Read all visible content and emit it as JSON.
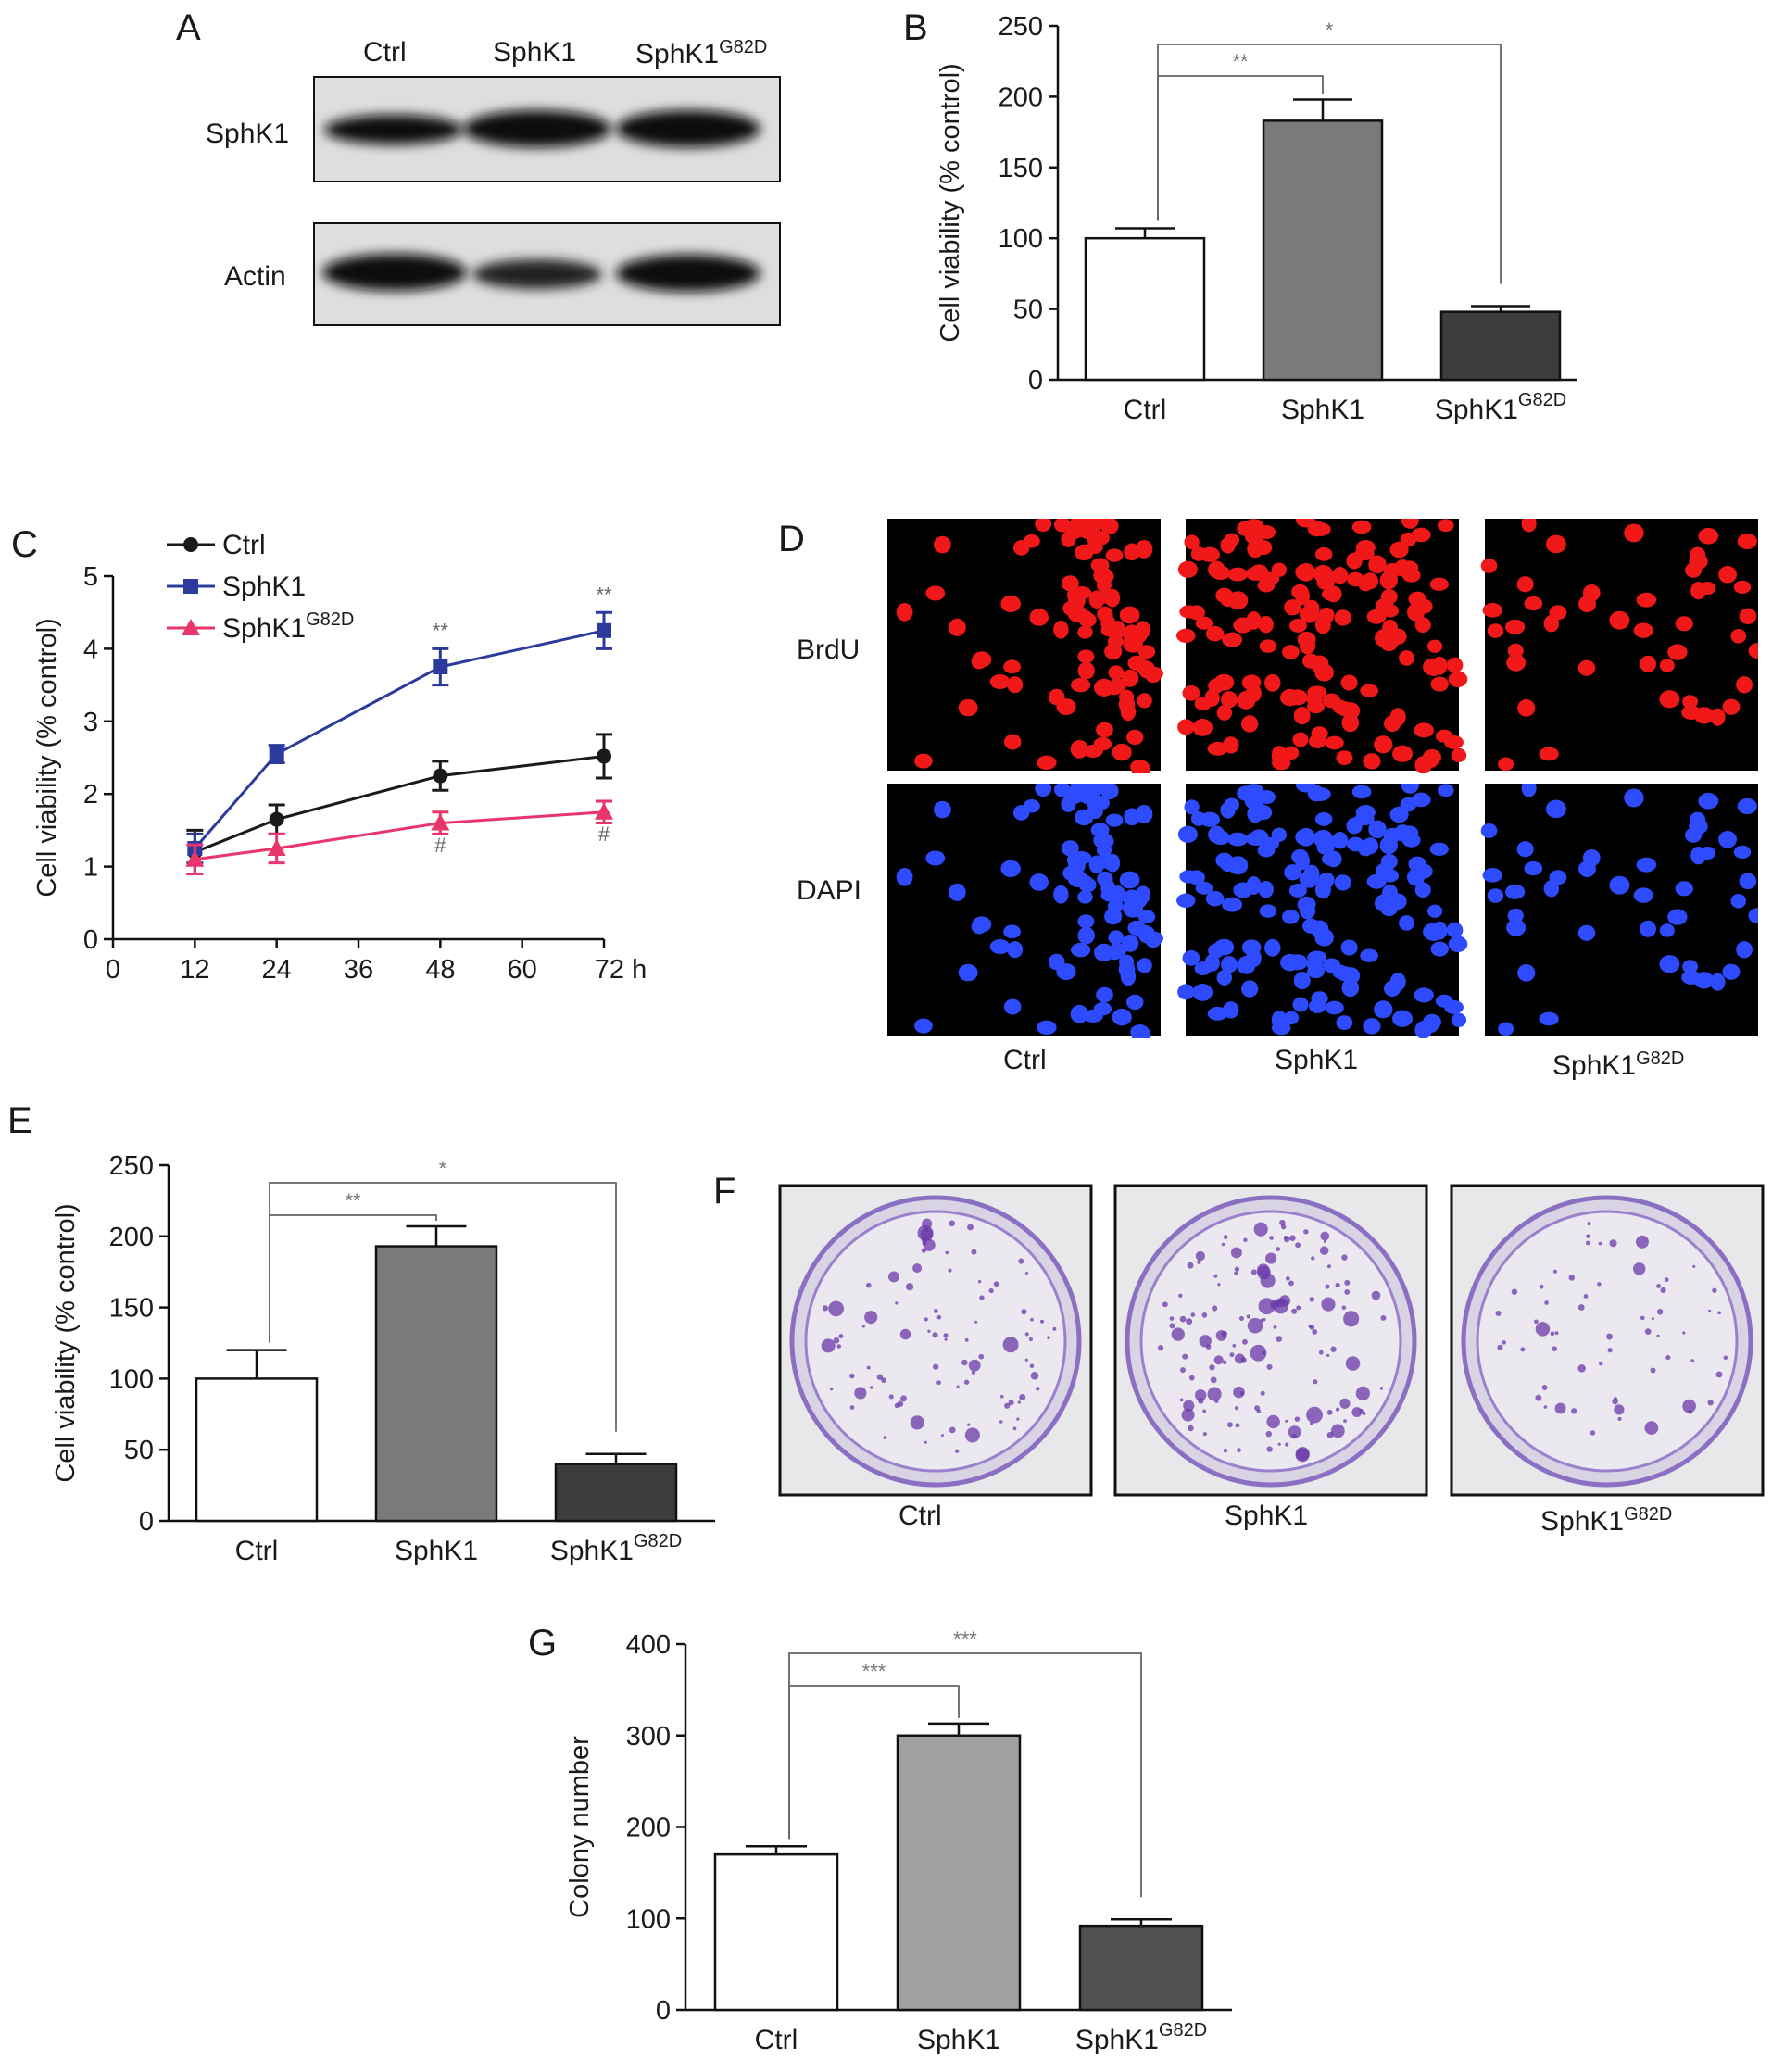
{
  "panels": {
    "a": {
      "letter": "A",
      "lanes": [
        "Ctrl",
        "SphK1",
        "SphK1"
      ],
      "lane3_superscript": "G82D",
      "rows": [
        "SphK1",
        "Actin"
      ]
    },
    "d": {
      "letter": "D",
      "rows": [
        "BrdU",
        "DAPI"
      ],
      "columns": [
        "Ctrl",
        "SphK1",
        "SphK1"
      ],
      "col3_superscript": "G82D"
    },
    "f": {
      "letter": "F",
      "columns": [
        "Ctrl",
        "SphK1",
        "SphK1"
      ],
      "col3_superscript": "G82D"
    }
  },
  "chart_data": [
    {
      "id": "B",
      "letter": "B",
      "type": "bar",
      "categories": [
        "Ctrl",
        "SphK1",
        "SphK1"
      ],
      "category_superscripts": [
        "",
        "",
        "G82D"
      ],
      "values": [
        100,
        183,
        48
      ],
      "errors": [
        7,
        15,
        4
      ],
      "ylabel": "Cell viability (% control)",
      "ylim": [
        0,
        250
      ],
      "yticks": [
        0,
        50,
        100,
        150,
        200,
        250
      ],
      "bar_colors": [
        "#ffffff",
        "#7a7a7a",
        "#3d3d3d"
      ],
      "brackets": [
        {
          "from": 0,
          "to": 1,
          "label": "**"
        },
        {
          "from": 0,
          "to": 2,
          "label": "*"
        }
      ]
    },
    {
      "id": "C",
      "letter": "C",
      "type": "line",
      "x": [
        12,
        24,
        48,
        72
      ],
      "xticks": [
        0,
        12,
        24,
        36,
        48,
        60,
        72
      ],
      "xtick_labels": [
        "0",
        "12",
        "24",
        "36",
        "48",
        "60",
        "72 h"
      ],
      "xlim": [
        0,
        72
      ],
      "ylim": [
        0,
        5
      ],
      "yticks": [
        0,
        1,
        2,
        3,
        4,
        5
      ],
      "ylabel": "Cell viability (% control)",
      "legend_position": "top-left",
      "series": [
        {
          "name": "Ctrl",
          "superscript": "",
          "values": [
            1.2,
            1.65,
            2.25,
            2.52
          ],
          "errors": [
            0.3,
            0.2,
            0.2,
            0.3
          ],
          "color": "#1a1a1a",
          "marker": "circle"
        },
        {
          "name": "SphK1",
          "superscript": "",
          "values": [
            1.25,
            2.55,
            3.75,
            4.25
          ],
          "errors": [
            0.2,
            0.12,
            0.25,
            0.25
          ],
          "color": "#2b3a9c",
          "marker": "square"
        },
        {
          "name": "SphK1",
          "superscript": "G82D",
          "values": [
            1.1,
            1.25,
            1.6,
            1.75
          ],
          "errors": [
            0.2,
            0.2,
            0.15,
            0.15
          ],
          "color": "#e8356b",
          "marker": "triangle"
        }
      ],
      "annotations": [
        {
          "x": 48,
          "y": 4.15,
          "text": "**"
        },
        {
          "x": 72,
          "y": 4.65,
          "text": "**"
        },
        {
          "x": 48,
          "y": 1.2,
          "text": "#"
        },
        {
          "x": 72,
          "y": 1.35,
          "text": "#"
        }
      ]
    },
    {
      "id": "E",
      "letter": "E",
      "type": "bar",
      "categories": [
        "Ctrl",
        "SphK1",
        "SphK1"
      ],
      "category_superscripts": [
        "",
        "",
        "G82D"
      ],
      "values": [
        100,
        193,
        40
      ],
      "errors": [
        20,
        14,
        7
      ],
      "ylabel": "Cell viability (% control)",
      "ylim": [
        0,
        250
      ],
      "yticks": [
        0,
        50,
        100,
        150,
        200,
        250
      ],
      "bar_colors": [
        "#ffffff",
        "#7a7a7a",
        "#3d3d3d"
      ],
      "brackets": [
        {
          "from": 0,
          "to": 1,
          "label": "**"
        },
        {
          "from": 0,
          "to": 2,
          "label": "*"
        }
      ]
    },
    {
      "id": "G",
      "letter": "G",
      "type": "bar",
      "categories": [
        "Ctrl",
        "SphK1",
        "SphK1"
      ],
      "category_superscripts": [
        "",
        "",
        "G82D"
      ],
      "values": [
        170,
        300,
        92
      ],
      "errors": [
        9,
        13,
        7
      ],
      "ylabel": "Colony number",
      "ylim": [
        0,
        400
      ],
      "yticks": [
        0,
        100,
        200,
        300,
        400
      ],
      "bar_colors": [
        "#ffffff",
        "#a0a0a0",
        "#505050"
      ],
      "brackets": [
        {
          "from": 0,
          "to": 1,
          "label": "***"
        },
        {
          "from": 0,
          "to": 2,
          "label": "***"
        }
      ]
    }
  ]
}
